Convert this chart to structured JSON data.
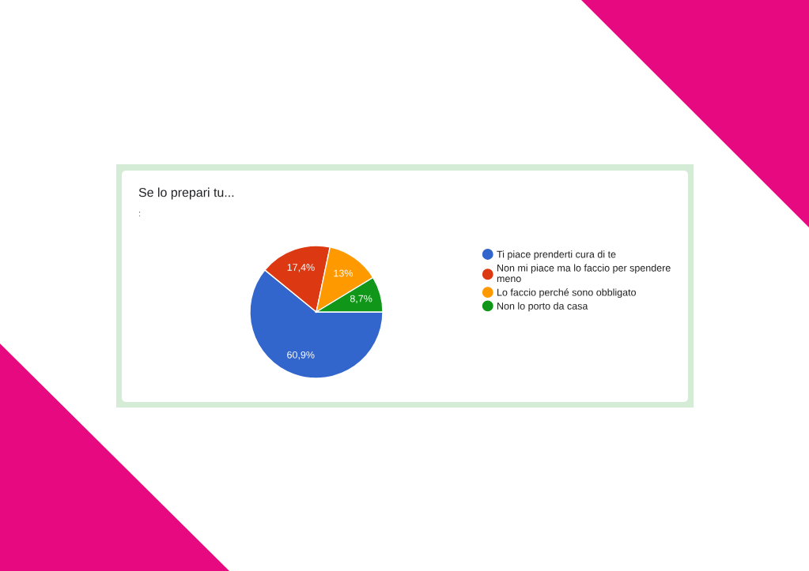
{
  "chart_data": {
    "type": "pie",
    "title": "Se lo prepari tu...",
    "subtitle": ":",
    "categories": [
      "Ti piace prenderti cura di te",
      "Non mi piace ma lo faccio per spendere meno",
      "Lo faccio perché sono obbligato",
      "Non lo porto da casa"
    ],
    "values": [
      60.9,
      17.4,
      13,
      8.7
    ],
    "colors": [
      "#3366cc",
      "#dc3912",
      "#ff9900",
      "#109618"
    ],
    "value_labels": [
      "60,9%",
      "17,4%",
      "13%",
      "8,7%"
    ],
    "legend": "right"
  }
}
